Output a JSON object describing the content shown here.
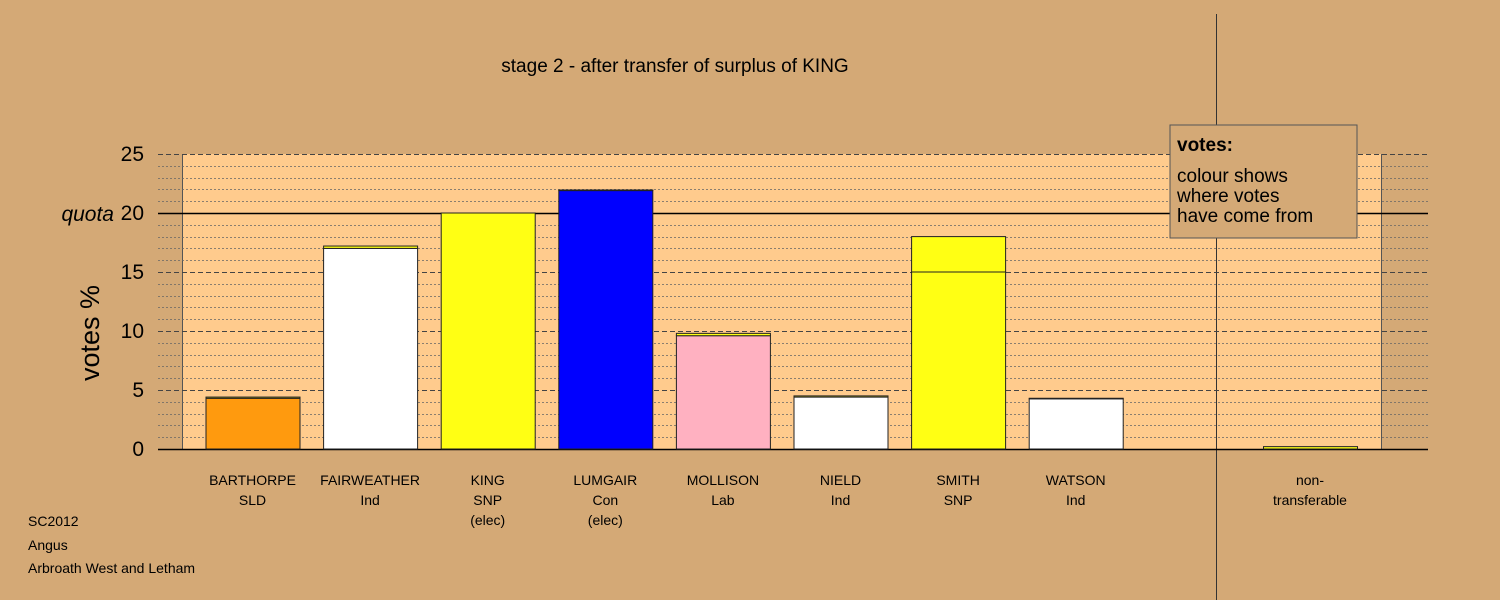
{
  "chart_data": {
    "type": "bar",
    "title": "stage 2 - after transfer of surplus of KING",
    "ylabel": "votes %",
    "quota_label": "quota",
    "quota": 20,
    "ylim": [
      0,
      25
    ],
    "yticks": [
      0,
      5,
      10,
      15,
      20,
      25
    ],
    "grid": true,
    "candidates": [
      {
        "name": "BARTHORPE",
        "party": "SLD",
        "status": "",
        "color": "#ff9a0e",
        "segments": [
          {
            "value": 4.3,
            "color": "#ff9a0e"
          },
          {
            "value": 0.1,
            "color": "#ffff14"
          }
        ]
      },
      {
        "name": "FAIRWEATHER",
        "party": "Ind",
        "status": "",
        "color": "#ffffff",
        "segments": [
          {
            "value": 17.0,
            "color": "#ffffff"
          },
          {
            "value": 0.2,
            "color": "#ffff14"
          }
        ]
      },
      {
        "name": "KING",
        "party": "SNP",
        "status": "(elec)",
        "color": "#ffff14",
        "segments": [
          {
            "value": 20.0,
            "color": "#ffff14"
          }
        ]
      },
      {
        "name": "LUMGAIR",
        "party": "Con",
        "status": "(elec)",
        "color": "#0000ff",
        "segments": [
          {
            "value": 21.9,
            "color": "#0000ff"
          },
          {
            "value": 0.05,
            "color": "#ffff14"
          }
        ]
      },
      {
        "name": "MOLLISON",
        "party": "Lab",
        "status": "",
        "color": "#ffb1c1",
        "segments": [
          {
            "value": 9.6,
            "color": "#ffb1c1"
          },
          {
            "value": 0.2,
            "color": "#ffff14"
          }
        ]
      },
      {
        "name": "NIELD",
        "party": "Ind",
        "status": "",
        "color": "#ffffff",
        "segments": [
          {
            "value": 4.4,
            "color": "#ffffff"
          },
          {
            "value": 0.1,
            "color": "#ffff14"
          }
        ]
      },
      {
        "name": "SMITH",
        "party": "SNP",
        "status": "",
        "color": "#ffff14",
        "segments": [
          {
            "value": 15.0,
            "color": "#ffff14"
          },
          {
            "value": 3.0,
            "color": "#ffff14"
          }
        ]
      },
      {
        "name": "WATSON",
        "party": "Ind",
        "status": "",
        "color": "#ffffff",
        "segments": [
          {
            "value": 4.25,
            "color": "#ffffff"
          },
          {
            "value": 0.05,
            "color": "#ffff14"
          }
        ]
      }
    ],
    "nontransferable": {
      "line1": "non-",
      "line2": "transferable",
      "value": 0.2,
      "color": "#ffff14"
    },
    "legend": {
      "title": "votes:",
      "lines": [
        "colour shows",
        "where votes",
        "have come from"
      ],
      "placement": "top-right"
    }
  },
  "footer": {
    "line1": "SC2012",
    "line2": "Angus",
    "line3": "Arbroath West and Letham"
  },
  "colors": {
    "background": "#d4a976",
    "plot_background": "#ffcb8d",
    "side_panel": "#d4a976"
  }
}
